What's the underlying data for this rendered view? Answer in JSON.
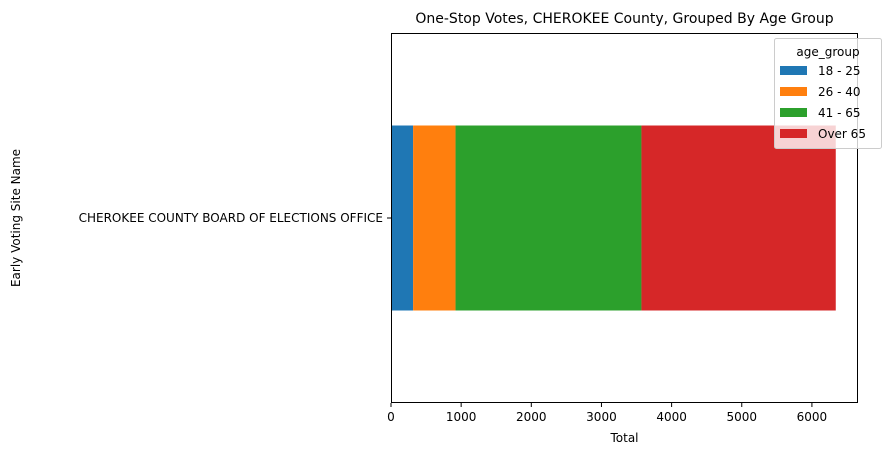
{
  "chart_data": {
    "type": "bar",
    "orientation": "horizontal",
    "stacked": true,
    "title": "One-Stop Votes, CHEROKEE County, Grouped By Age Group",
    "xlabel": "Total",
    "ylabel": "Early Voting Site Name",
    "categories": [
      "CHEROKEE COUNTY BOARD OF ELECTIONS OFFICE"
    ],
    "series": [
      {
        "name": "18 - 25",
        "values": [
          315
        ],
        "color": "#1f77b4"
      },
      {
        "name": "26 - 40",
        "values": [
          605
        ],
        "color": "#ff7f0e"
      },
      {
        "name": "41 - 65",
        "values": [
          2650
        ],
        "color": "#2ca02c"
      },
      {
        "name": "Over 65",
        "values": [
          2770
        ],
        "color": "#d62728"
      }
    ],
    "xlim": [
      0,
      6657
    ],
    "xticks": [
      0,
      1000,
      2000,
      3000,
      4000,
      5000,
      6000
    ],
    "grid": false,
    "legend": {
      "title": "age_group",
      "placement": "top-right"
    }
  }
}
